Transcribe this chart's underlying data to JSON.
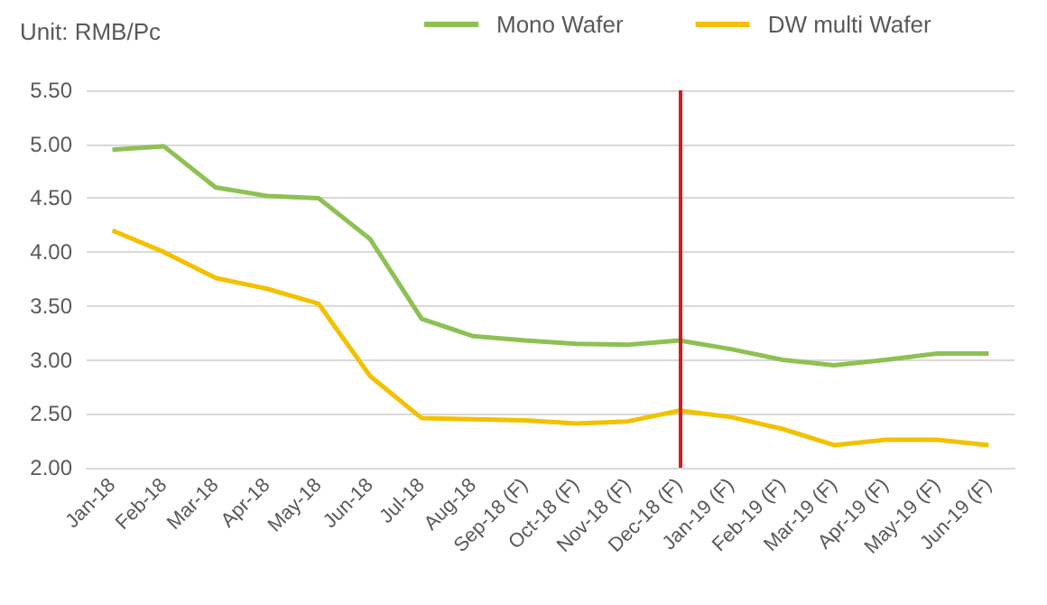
{
  "chart_data": {
    "type": "line",
    "ylabel": "Unit: RMB/Pc",
    "categories": [
      "Jan-18",
      "Feb-18",
      "Mar-18",
      "Apr-18",
      "May-18",
      "Jun-18",
      "Jul-18",
      "Aug-18",
      "Sep-18 (F)",
      "Oct-18 (F)",
      "Nov-18 (F)",
      "Dec-18 (F)",
      "Jan-19 (F)",
      "Feb-19 (F)",
      "Mar-19 (F)",
      "Apr-19 (F)",
      "May-19 (F)",
      "Jun-19 (F)"
    ],
    "series": [
      {
        "name": "Mono Wafer",
        "color": "#8dc153",
        "values": [
          4.95,
          4.98,
          4.6,
          4.52,
          4.5,
          4.12,
          3.38,
          3.22,
          3.18,
          3.15,
          3.14,
          3.18,
          3.1,
          3.0,
          2.95,
          3.0,
          3.06,
          3.06
        ]
      },
      {
        "name": "DW multi Wafer",
        "color": "#f2c100",
        "values": [
          4.2,
          4.0,
          3.76,
          3.66,
          3.52,
          2.85,
          2.46,
          2.45,
          2.44,
          2.41,
          2.43,
          2.53,
          2.47,
          2.36,
          2.21,
          2.26,
          2.26,
          2.21
        ]
      }
    ],
    "ylim": [
      2.0,
      5.5
    ],
    "yticks": [
      {
        "value": 2.0,
        "label": "2.00"
      },
      {
        "value": 2.5,
        "label": "2.50"
      },
      {
        "value": 3.0,
        "label": "3.00"
      },
      {
        "value": 3.5,
        "label": "3.50"
      },
      {
        "value": 4.0,
        "label": "4.00"
      },
      {
        "value": 4.5,
        "label": "4.50"
      },
      {
        "value": 5.0,
        "label": "5.00"
      },
      {
        "value": 5.5,
        "label": "5.50"
      }
    ],
    "ref_lines": [
      {
        "axis": "x",
        "value": "Dec-18 (F)",
        "color": "#d9181f"
      }
    ],
    "grid": "y",
    "legend": "top",
    "marker": "none",
    "line_style": "solid"
  }
}
